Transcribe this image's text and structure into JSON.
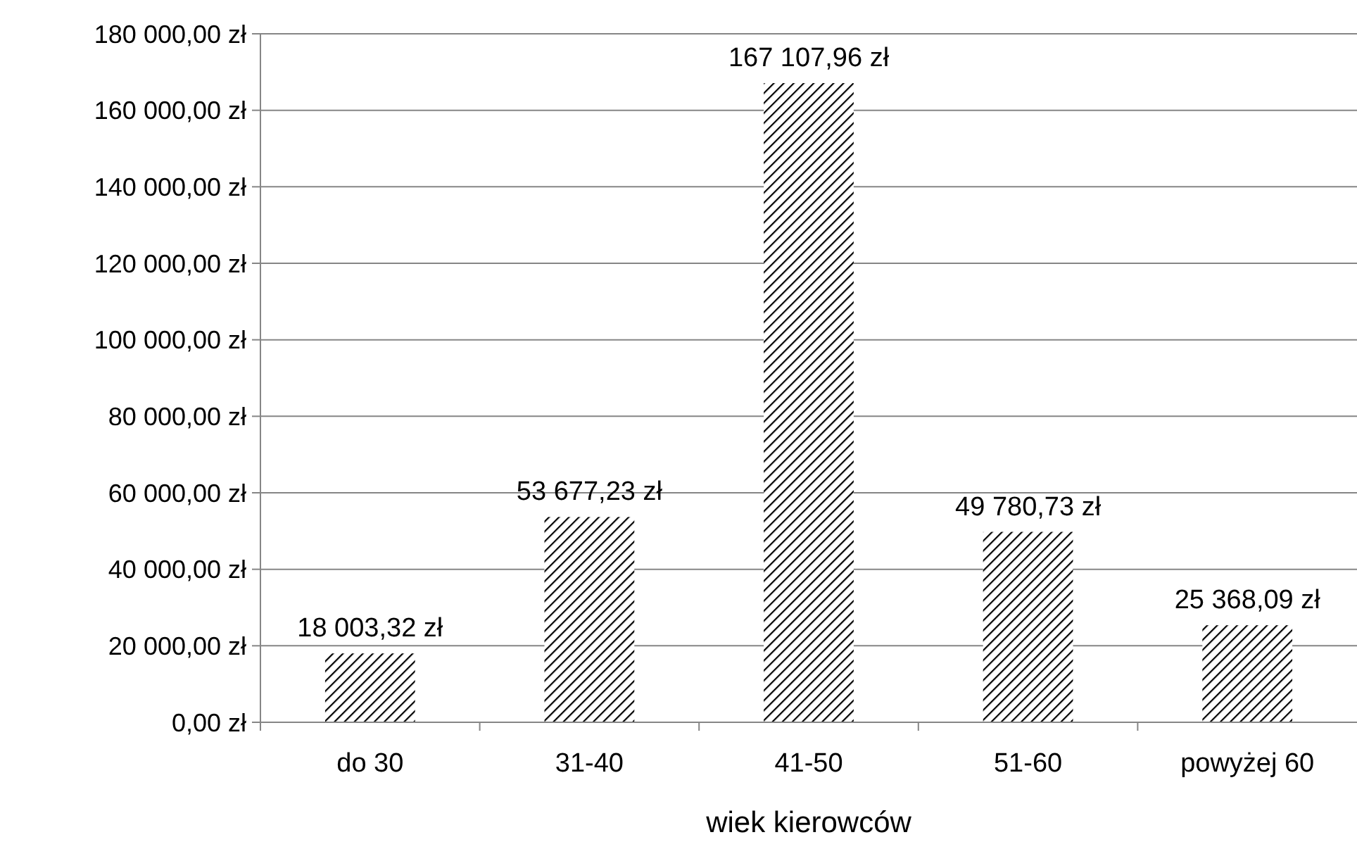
{
  "chart_data": {
    "type": "bar",
    "xlabel": "wiek kierowców",
    "categories": [
      "do 30",
      "31-40",
      "41-50",
      "51-60",
      "powyżej 60"
    ],
    "values": [
      18003.32,
      53677.23,
      167107.96,
      49780.73,
      25368.09
    ],
    "value_labels": [
      "18 003,32 zł",
      "53 677,23 zł",
      "167 107,96 zł",
      "49 780,73 zł",
      "25 368,09 zł"
    ],
    "color": "#000000",
    "ylim": [
      0,
      180000
    ],
    "yticks": [
      {
        "value": 0,
        "label": "0,00 zł"
      },
      {
        "value": 20000,
        "label": "20 000,00 zł"
      },
      {
        "value": 40000,
        "label": "40 000,00 zł"
      },
      {
        "value": 60000,
        "label": "60 000,00 zł"
      },
      {
        "value": 80000,
        "label": "80 000,00 zł"
      },
      {
        "value": 100000,
        "label": "100 000,00 zł"
      },
      {
        "value": 120000,
        "label": "120 000,00 zł"
      },
      {
        "value": 140000,
        "label": "140 000,00 zł"
      },
      {
        "value": 160000,
        "label": "160 000,00 zł"
      },
      {
        "value": 180000,
        "label": "180 000,00 zł"
      }
    ],
    "grid": "y"
  }
}
